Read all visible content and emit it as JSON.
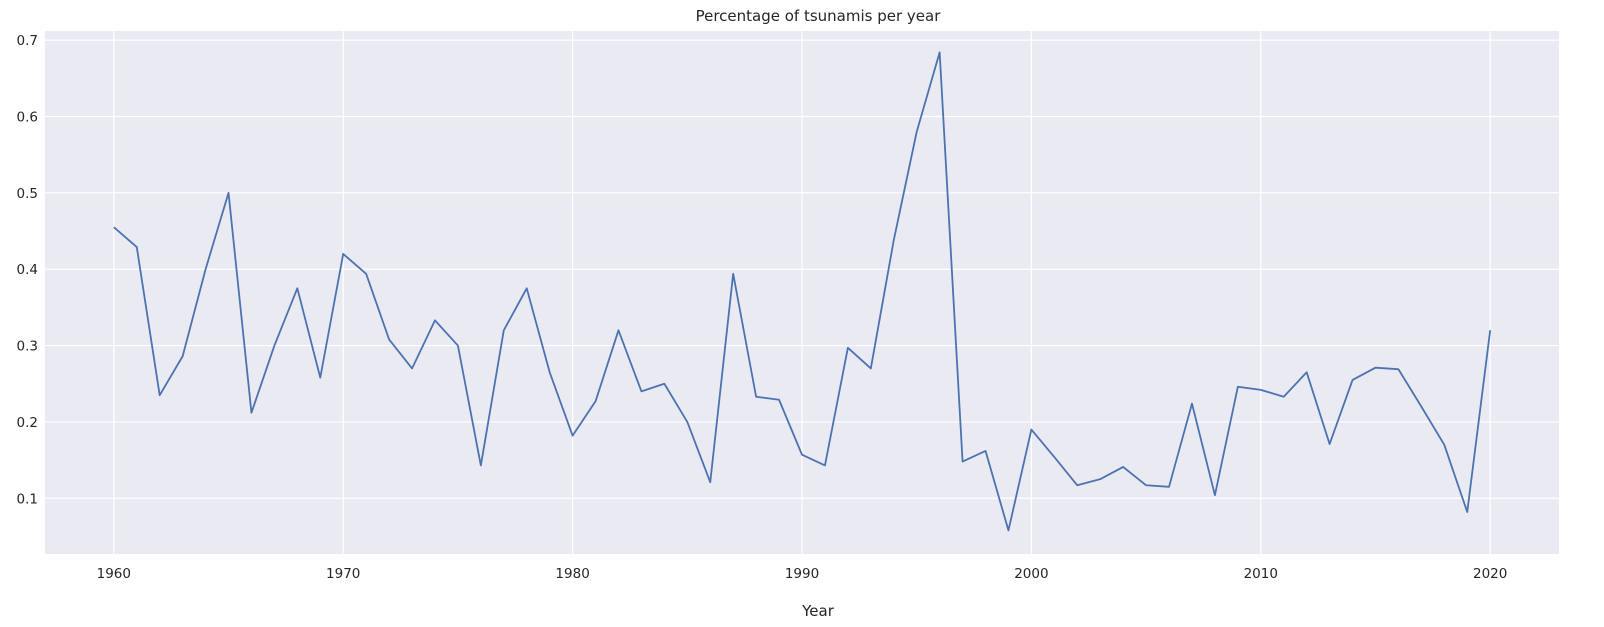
{
  "chart_data": {
    "type": "line",
    "title": "Percentage of tsunamis per year",
    "xlabel": "Year",
    "ylabel": "",
    "xlim": [
      1957.0,
      2023.0
    ],
    "ylim": [
      0.027,
      0.712
    ],
    "xticks": [
      1960,
      1970,
      1980,
      1990,
      2000,
      2010,
      2020
    ],
    "yticks": [
      0.1,
      0.2,
      0.3,
      0.4,
      0.5,
      0.6,
      0.7
    ],
    "xtick_labels": [
      "1960",
      "1970",
      "1980",
      "1990",
      "2000",
      "2010",
      "2020"
    ],
    "ytick_labels": [
      "0.1",
      "0.2",
      "0.3",
      "0.4",
      "0.5",
      "0.6",
      "0.7"
    ],
    "grid": true,
    "background": "#eaeaf2",
    "line_color": "#4c72b0",
    "x": [
      1960,
      1961,
      1962,
      1963,
      1964,
      1965,
      1966,
      1967,
      1968,
      1969,
      1970,
      1971,
      1972,
      1973,
      1974,
      1975,
      1976,
      1977,
      1978,
      1979,
      1980,
      1981,
      1982,
      1983,
      1984,
      1985,
      1986,
      1987,
      1988,
      1989,
      1990,
      1991,
      1992,
      1993,
      1994,
      1995,
      1996,
      1997,
      1998,
      1999,
      2000,
      2001,
      2002,
      2003,
      2004,
      2005,
      2006,
      2007,
      2008,
      2009,
      2010,
      2011,
      2012,
      2013,
      2014,
      2015,
      2016,
      2017,
      2018,
      2019,
      2020
    ],
    "y": [
      0.455,
      0.429,
      0.235,
      0.286,
      0.4,
      0.5,
      0.212,
      0.3,
      0.375,
      0.258,
      0.42,
      0.394,
      0.308,
      0.27,
      0.333,
      0.3,
      0.143,
      0.32,
      0.375,
      0.265,
      0.182,
      0.227,
      0.32,
      0.24,
      0.25,
      0.2,
      0.121,
      0.394,
      0.233,
      0.229,
      0.157,
      0.143,
      0.297,
      0.27,
      0.438,
      0.58,
      0.684,
      0.148,
      0.162,
      0.058,
      0.19,
      0.154,
      0.117,
      0.125,
      0.141,
      0.117,
      0.115,
      0.224,
      0.104,
      0.246,
      0.242,
      0.233,
      0.265,
      0.171,
      0.255,
      0.271,
      0.269,
      0.22,
      0.17,
      0.082,
      0.32
    ]
  }
}
